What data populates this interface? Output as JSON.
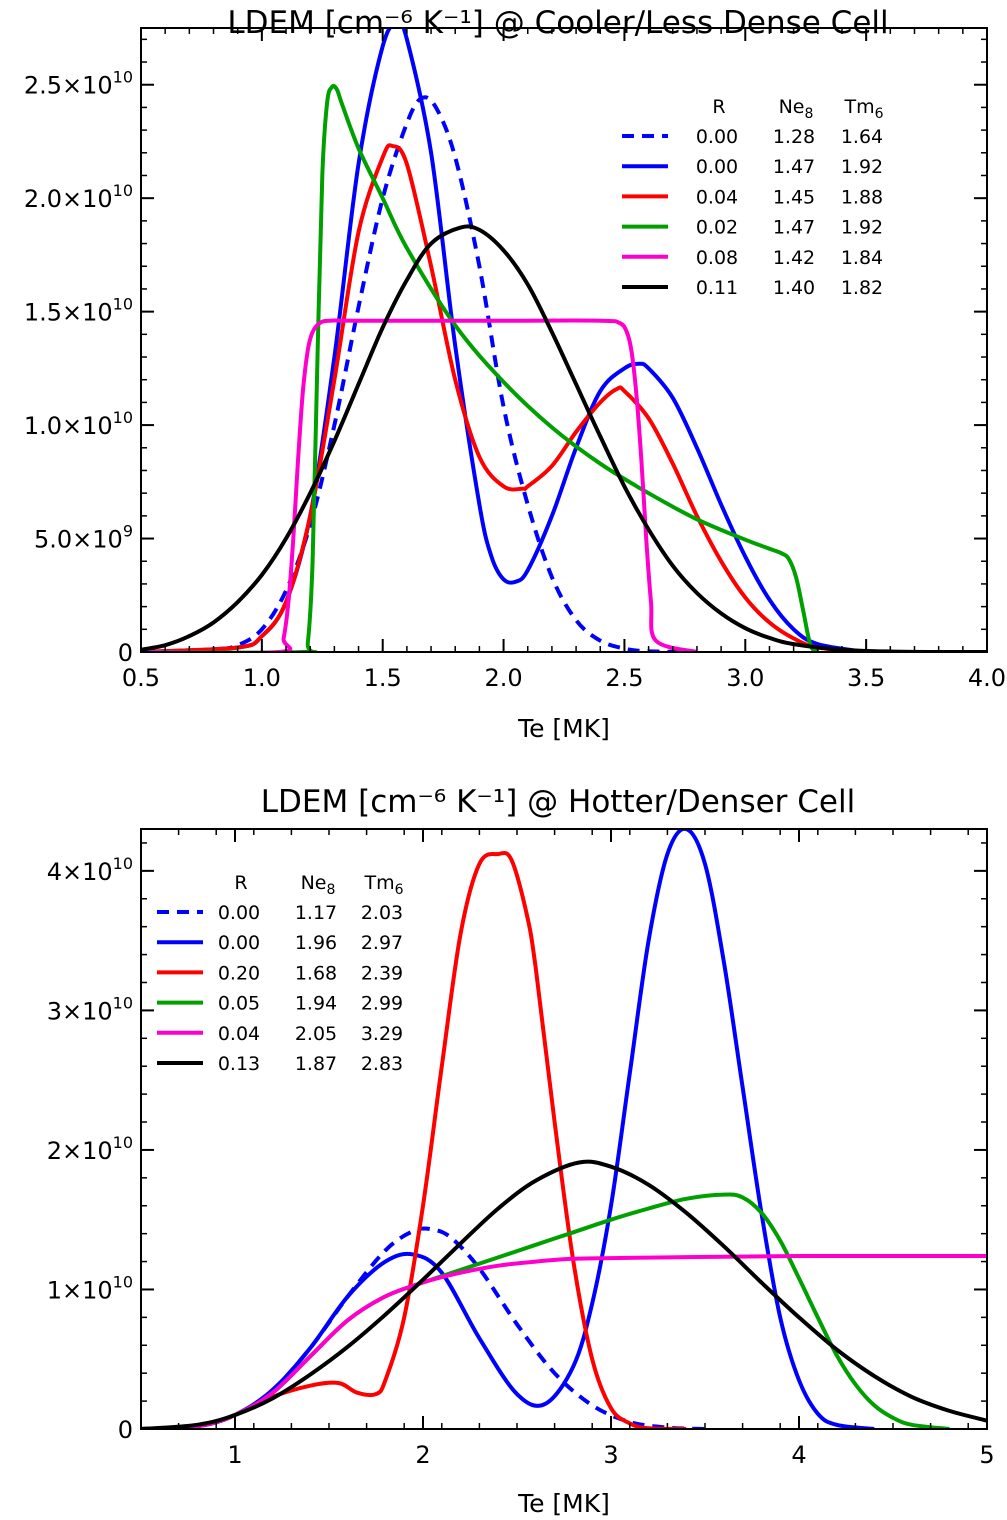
{
  "chart_data": [
    {
      "type": "line",
      "title": "LDEM [cm⁻⁶ K⁻¹] @ Cooler/Less Dense Cell",
      "xlabel": "Te [MK]",
      "ylabel": "",
      "xlim": [
        0.5,
        4.0
      ],
      "ylim": [
        0,
        27500000000.0
      ],
      "xticks": [
        0.5,
        1.0,
        1.5,
        2.0,
        2.5,
        3.0,
        3.5,
        4.0
      ],
      "xtick_labels": [
        "0.5",
        "1.0",
        "1.5",
        "2.0",
        "2.5",
        "3.0",
        "3.5",
        "4.0"
      ],
      "yticks": [
        0,
        5000000000.0,
        10000000000.0,
        15000000000.0,
        20000000000.0,
        25000000000.0
      ],
      "ytick_labels": [
        {
          "m": "0",
          "e": ""
        },
        {
          "m": "5.0×10",
          "e": "9"
        },
        {
          "m": "1.0×10",
          "e": "10"
        },
        {
          "m": "1.5×10",
          "e": "10"
        },
        {
          "m": "2.0×10",
          "e": "10"
        },
        {
          "m": "2.5×10",
          "e": "10"
        }
      ],
      "legend": {
        "position": "top-right",
        "headers": [
          "R",
          "Ne8",
          "Tm6"
        ],
        "rows": [
          [
            "0.00",
            "1.28",
            "1.64"
          ],
          [
            "0.00",
            "1.47",
            "1.92"
          ],
          [
            "0.04",
            "1.45",
            "1.88"
          ],
          [
            "0.02",
            "1.47",
            "1.92"
          ],
          [
            "0.08",
            "1.42",
            "1.84"
          ],
          [
            "0.11",
            "1.40",
            "1.82"
          ]
        ]
      },
      "series": [
        {
          "color": "#0000ff",
          "dash": true,
          "x": [
            0.5,
            0.8,
            0.9,
            1.0,
            1.1,
            1.2,
            1.3,
            1.4,
            1.5,
            1.6,
            1.66,
            1.72,
            1.8,
            1.9,
            2.0,
            2.1,
            2.2,
            2.3,
            2.4,
            2.5,
            2.6,
            2.8
          ],
          "y": [
            0,
            100000000.0,
            300000000.0,
            1000000000.0,
            2700000000.0,
            5600000000.0,
            10000000000.0,
            15200000000.0,
            20000000000.0,
            23300000000.0,
            24400000000.0,
            24000000000.0,
            21800000000.0,
            17000000000.0,
            10800000000.0,
            6500000000.0,
            3300000000.0,
            1400000000.0,
            500000000.0,
            150000000.0,
            30000000.0,
            0
          ]
        },
        {
          "color": "#0000ff",
          "x": [
            0.5,
            0.9,
            1.0,
            1.1,
            1.2,
            1.3,
            1.4,
            1.5,
            1.56,
            1.6,
            1.7,
            1.8,
            1.9,
            1.95,
            2.0,
            2.05,
            2.1,
            2.2,
            2.3,
            2.4,
            2.5,
            2.56,
            2.6,
            2.7,
            2.8,
            2.9,
            3.0,
            3.1,
            3.2,
            3.3,
            3.5
          ],
          "y": [
            0,
            200000000.0,
            700000000.0,
            2200000000.0,
            6000000000.0,
            13000000000.0,
            21500000000.0,
            26700000000.0,
            27700000000.0,
            27000000000.0,
            22000000000.0,
            13500000000.0,
            6500000000.0,
            4200000000.0,
            3200000000.0,
            3100000000.0,
            3600000000.0,
            6000000000.0,
            9000000000.0,
            11500000000.0,
            12500000000.0,
            12700000000.0,
            12500000000.0,
            11200000000.0,
            9000000000.0,
            6500000000.0,
            4200000000.0,
            2300000000.0,
            1000000000.0,
            350000000.0,
            0
          ]
        },
        {
          "color": "#ff0000",
          "x": [
            0.5,
            0.9,
            1.0,
            1.1,
            1.2,
            1.3,
            1.4,
            1.5,
            1.54,
            1.6,
            1.7,
            1.8,
            1.9,
            2.0,
            2.08,
            2.1,
            2.2,
            2.3,
            2.4,
            2.47,
            2.5,
            2.6,
            2.7,
            2.8,
            2.9,
            3.0,
            3.1,
            3.2,
            3.3,
            3.5
          ],
          "y": [
            0,
            200000000.0,
            700000000.0,
            2200000000.0,
            6000000000.0,
            12000000000.0,
            18500000000.0,
            21800000000.0,
            22300000000.0,
            21500000000.0,
            17000000000.0,
            12000000000.0,
            8600000000.0,
            7300000000.0,
            7200000000.0,
            7300000000.0,
            8200000000.0,
            9700000000.0,
            11000000000.0,
            11600000000.0,
            11500000000.0,
            10300000000.0,
            8300000000.0,
            6000000000.0,
            4000000000.0,
            2400000000.0,
            1300000000.0,
            600000000.0,
            200000000.0,
            0
          ]
        },
        {
          "color": "#00a000",
          "x": [
            0.5,
            1.17,
            1.19,
            1.21,
            1.23,
            1.25,
            1.27,
            1.29,
            1.31,
            1.33,
            1.4,
            1.5,
            1.6,
            1.8,
            2.0,
            2.2,
            2.4,
            2.6,
            2.8,
            3.0,
            3.1,
            3.15,
            3.18,
            3.21,
            3.24,
            3.27,
            3.3
          ],
          "y": [
            0,
            0,
            400000000.0,
            4000000000.0,
            13000000000.0,
            21000000000.0,
            24200000000.0,
            24900000000.0,
            24800000000.0,
            24200000000.0,
            22200000000.0,
            20000000000.0,
            17800000000.0,
            14400000000.0,
            11900000000.0,
            9900000000.0,
            8300000000.0,
            7000000000.0,
            5850000000.0,
            4950000000.0,
            4550000000.0,
            4350000000.0,
            4100000000.0,
            3300000000.0,
            1800000000.0,
            300000000.0,
            0
          ]
        },
        {
          "color": "#ff00cc",
          "x": [
            0.5,
            1.07,
            1.09,
            1.11,
            1.13,
            1.15,
            1.17,
            1.19,
            1.21,
            1.24,
            1.28,
            1.4,
            2.0,
            2.4,
            2.48,
            2.51,
            2.53,
            2.55,
            2.57,
            2.59,
            2.61,
            2.63,
            2.8
          ],
          "y": [
            0,
            0,
            600000000.0,
            2200000000.0,
            5000000000.0,
            8500000000.0,
            11500000000.0,
            13300000000.0,
            14100000000.0,
            14500000000.0,
            14600000000.0,
            14600000000.0,
            14600000000.0,
            14600000000.0,
            14500000000.0,
            14100000000.0,
            13200000000.0,
            11300000000.0,
            8500000000.0,
            5000000000.0,
            2200000000.0,
            500000000.0,
            0
          ]
        },
        {
          "color": "#000000",
          "x": [
            0.5,
            0.6,
            0.7,
            0.8,
            0.9,
            1.0,
            1.1,
            1.2,
            1.3,
            1.4,
            1.5,
            1.6,
            1.7,
            1.82,
            1.9,
            2.0,
            2.1,
            2.2,
            2.3,
            2.4,
            2.5,
            2.6,
            2.7,
            2.8,
            2.9,
            3.0,
            3.1,
            3.2,
            3.4,
            3.6,
            3.8,
            4.0
          ],
          "y": [
            100000000.0,
            300000000.0,
            700000000.0,
            1300000000.0,
            2200000000.0,
            3400000000.0,
            5000000000.0,
            7000000000.0,
            9300000000.0,
            11800000000.0,
            14300000000.0,
            16400000000.0,
            18000000000.0,
            18700000000.0,
            18600000000.0,
            17700000000.0,
            16200000000.0,
            14100000000.0,
            11800000000.0,
            9500000000.0,
            7300000000.0,
            5400000000.0,
            3800000000.0,
            2600000000.0,
            1700000000.0,
            1050000000.0,
            620000000.0,
            350000000.0,
            100000000.0,
            20000000.0,
            0,
            0
          ]
        }
      ]
    },
    {
      "type": "line",
      "title": "LDEM [cm⁻⁶ K⁻¹] @ Hotter/Denser Cell",
      "xlabel": "Te [MK]",
      "ylabel": "",
      "xlim": [
        0.5,
        5.0
      ],
      "ylim": [
        0,
        43000000000.0
      ],
      "xticks": [
        1,
        2,
        3,
        4,
        5
      ],
      "xtick_labels": [
        "1",
        "2",
        "3",
        "4",
        "5"
      ],
      "yticks": [
        0,
        10000000000.0,
        20000000000.0,
        30000000000.0,
        40000000000.0
      ],
      "ytick_labels": [
        {
          "m": "0",
          "e": ""
        },
        {
          "m": "1×10",
          "e": "10"
        },
        {
          "m": "2×10",
          "e": "10"
        },
        {
          "m": "3×10",
          "e": "10"
        },
        {
          "m": "4×10",
          "e": "10"
        }
      ],
      "legend": {
        "position": "top-left",
        "headers": [
          "R",
          "Ne8",
          "Tm6"
        ],
        "rows": [
          [
            "0.00",
            "1.17",
            "2.03"
          ],
          [
            "0.00",
            "1.96",
            "2.97"
          ],
          [
            "0.20",
            "1.68",
            "2.39"
          ],
          [
            "0.05",
            "1.94",
            "2.99"
          ],
          [
            "0.04",
            "2.05",
            "3.29"
          ],
          [
            "0.13",
            "1.87",
            "2.83"
          ]
        ]
      },
      "series": [
        {
          "color": "#0000ff",
          "dash": true,
          "x": [
            0.5,
            0.8,
            1.0,
            1.2,
            1.4,
            1.6,
            1.8,
            1.95,
            2.05,
            2.15,
            2.3,
            2.5,
            2.7,
            2.9,
            3.1,
            3.3,
            3.5
          ],
          "y": [
            0,
            200000000.0,
            1000000000.0,
            2800000000.0,
            5800000000.0,
            9500000000.0,
            12800000000.0,
            14200000000.0,
            14300000000.0,
            13700000000.0,
            11500000000.0,
            7500000000.0,
            4000000000.0,
            1700000000.0,
            500000000.0,
            100000000.0,
            0
          ]
        },
        {
          "color": "#0000ff",
          "x": [
            0.5,
            0.8,
            1.0,
            1.2,
            1.4,
            1.6,
            1.8,
            1.95,
            2.1,
            2.3,
            2.5,
            2.65,
            2.8,
            2.9,
            3.0,
            3.1,
            3.2,
            3.3,
            3.4,
            3.5,
            3.6,
            3.7,
            3.8,
            3.9,
            4.0,
            4.1,
            4.2,
            4.4
          ],
          "y": [
            0,
            200000000.0,
            1000000000.0,
            2800000000.0,
            5800000000.0,
            9500000000.0,
            12000000000.0,
            12500000000.0,
            11200000000.0,
            6500000000.0,
            2500000000.0,
            1800000000.0,
            4500000000.0,
            9000000000.0,
            16000000000.0,
            25500000000.0,
            35000000000.0,
            41200000000.0,
            43000000000.0,
            40500000000.0,
            33500000000.0,
            24500000000.0,
            15500000000.0,
            8000000000.0,
            3500000000.0,
            1100000000.0,
            300000000.0,
            0
          ]
        },
        {
          "color": "#ff0000",
          "x": [
            0.5,
            0.8,
            1.0,
            1.2,
            1.4,
            1.55,
            1.65,
            1.75,
            1.8,
            1.9,
            2.0,
            2.1,
            2.2,
            2.3,
            2.4,
            2.47,
            2.55,
            2.6,
            2.7,
            2.8,
            2.9,
            3.0,
            3.1,
            3.2,
            3.4
          ],
          "y": [
            0,
            200000000.0,
            1000000000.0,
            2300000000.0,
            3100000000.0,
            3300000000.0,
            2600000000.0,
            2500000000.0,
            3500000000.0,
            8000000000.0,
            16000000000.0,
            26000000000.0,
            35500000000.0,
            40500000000.0,
            41200000000.0,
            40800000000.0,
            37000000000.0,
            33000000000.0,
            22000000000.0,
            12000000000.0,
            5000000000.0,
            1500000000.0,
            400000000.0,
            50000000.0,
            0
          ]
        },
        {
          "color": "#00a000",
          "x": [
            0.5,
            0.8,
            1.0,
            1.2,
            1.4,
            1.6,
            1.8,
            2.0,
            2.2,
            2.4,
            2.6,
            2.8,
            3.0,
            3.2,
            3.4,
            3.6,
            3.7,
            3.8,
            3.9,
            4.0,
            4.1,
            4.2,
            4.3,
            4.4,
            4.5,
            4.6,
            4.8
          ],
          "y": [
            0,
            200000000.0,
            1000000000.0,
            2600000000.0,
            5200000000.0,
            7800000000.0,
            9500000000.0,
            10500000000.0,
            11400000000.0,
            12300000000.0,
            13200000000.0,
            14100000000.0,
            15000000000.0,
            15800000000.0,
            16500000000.0,
            16800000000.0,
            16600000000.0,
            15500000000.0,
            13500000000.0,
            10800000000.0,
            8000000000.0,
            5300000000.0,
            3200000000.0,
            1700000000.0,
            800000000.0,
            300000000.0,
            0
          ]
        },
        {
          "color": "#ff00cc",
          "x": [
            0.5,
            0.8,
            1.0,
            1.2,
            1.4,
            1.6,
            1.8,
            2.0,
            2.2,
            2.4,
            2.6,
            2.8,
            3.0,
            3.3,
            3.6,
            4.0,
            4.5,
            5.0
          ],
          "y": [
            0,
            200000000.0,
            1000000000.0,
            2600000000.0,
            5200000000.0,
            7800000000.0,
            9500000000.0,
            10500000000.0,
            11200000000.0,
            11700000000.0,
            12000000000.0,
            12200000000.0,
            12250000000.0,
            12300000000.0,
            12350000000.0,
            12400000000.0,
            12400000000.0,
            12400000000.0
          ]
        },
        {
          "color": "#000000",
          "x": [
            0.5,
            0.8,
            1.0,
            1.2,
            1.4,
            1.6,
            1.8,
            2.0,
            2.2,
            2.4,
            2.6,
            2.83,
            3.0,
            3.2,
            3.4,
            3.6,
            3.8,
            4.0,
            4.2,
            4.4,
            4.6,
            4.8,
            5.0
          ],
          "y": [
            0,
            300000000.0,
            1000000000.0,
            2200000000.0,
            3900000000.0,
            5900000000.0,
            8200000000.0,
            10700000000.0,
            13300000000.0,
            15800000000.0,
            17800000000.0,
            19100000000.0,
            18800000000.0,
            17500000000.0,
            15500000000.0,
            13100000000.0,
            10500000000.0,
            8000000000.0,
            5700000000.0,
            3800000000.0,
            2300000000.0,
            1300000000.0,
            600000000.0
          ]
        }
      ]
    }
  ]
}
